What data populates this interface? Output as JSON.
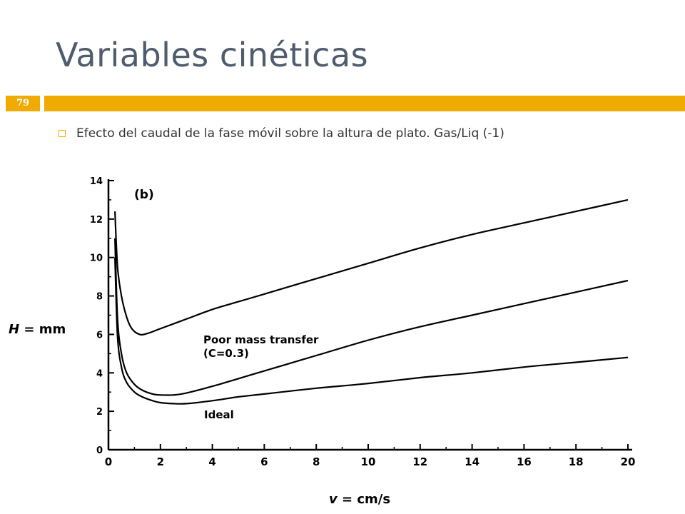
{
  "slide": {
    "title": "Variables cinéticas",
    "number": "79",
    "bullet": "Efecto del caudal de la fase móvil sobre la altura de plato. Gas/Liq (-1)",
    "accent_color": "#f0ab00",
    "title_color": "#4f5b6e"
  },
  "chart_data": {
    "type": "line",
    "panel_label": "(b)",
    "ylabel_sym": "H",
    "ylabel_unit": "= mm",
    "xlabel_sym": "v",
    "xlabel_unit": "= cm/s",
    "xlim": [
      0,
      20
    ],
    "ylim": [
      0,
      14
    ],
    "xticks": [
      0,
      2,
      4,
      6,
      8,
      10,
      12,
      14,
      16,
      18,
      20
    ],
    "yticks": [
      0,
      2,
      4,
      6,
      8,
      10,
      12,
      14
    ],
    "grid": false,
    "series": [
      {
        "x": [
          0.25,
          0.35,
          0.5,
          0.7,
          0.9,
          1.2,
          1.5,
          2,
          3,
          4,
          5,
          6,
          8,
          10,
          12,
          14,
          16,
          18,
          20
        ],
        "y": [
          12.4,
          9.5,
          8.0,
          6.9,
          6.3,
          6.0,
          6.05,
          6.3,
          6.8,
          7.3,
          7.7,
          8.1,
          8.9,
          9.7,
          10.5,
          11.2,
          11.8,
          12.4,
          13.0
        ]
      },
      {
        "name": "Poor mass transfer (C=0.3)",
        "label_line1": "Poor mass transfer",
        "label_line2": "(C=0.3)",
        "x": [
          0.25,
          0.35,
          0.5,
          0.7,
          1.0,
          1.3,
          1.7,
          2,
          2.5,
          3,
          4,
          5,
          6,
          8,
          10,
          12,
          14,
          16,
          18,
          20
        ],
        "y": [
          11.0,
          6.8,
          5.0,
          4.0,
          3.4,
          3.1,
          2.9,
          2.85,
          2.85,
          2.95,
          3.3,
          3.7,
          4.1,
          4.9,
          5.7,
          6.4,
          7.0,
          7.6,
          8.2,
          8.8
        ]
      },
      {
        "name": "Ideal",
        "label_line1": "Ideal",
        "x": [
          0.25,
          0.35,
          0.5,
          0.7,
          1.0,
          1.3,
          1.7,
          2,
          2.5,
          3,
          4,
          5,
          6,
          8,
          10,
          12,
          14,
          16,
          18,
          20
        ],
        "y": [
          10.0,
          5.9,
          4.3,
          3.5,
          3.0,
          2.75,
          2.55,
          2.45,
          2.4,
          2.4,
          2.55,
          2.75,
          2.9,
          3.2,
          3.45,
          3.75,
          4.0,
          4.3,
          4.55,
          4.8
        ]
      }
    ]
  }
}
